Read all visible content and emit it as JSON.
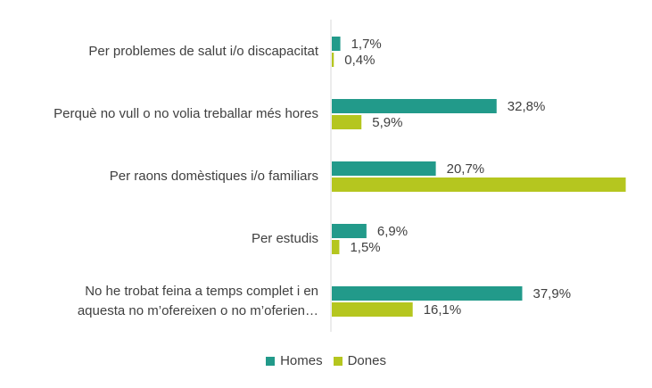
{
  "chart_data": {
    "type": "bar",
    "orientation": "horizontal",
    "categories": [
      [
        "Per problemes de salut i/o discapacitat"
      ],
      [
        "Perquè no vull o no volia treballar més hores"
      ],
      [
        "Per raons domèstiques i/o familiars"
      ],
      [
        "Per estudis"
      ],
      [
        "No he trobat feina a temps complet i en",
        "aquesta no m’ofereixen o no m’oferien…"
      ]
    ],
    "series": [
      {
        "name": "Homes",
        "color": "#229a8a",
        "values": [
          1.7,
          32.8,
          20.7,
          6.9,
          37.9
        ],
        "labels": [
          "1,7%",
          "32,8%",
          "20,7%",
          "6,9%",
          "37,9%"
        ]
      },
      {
        "name": "Dones",
        "color": "#b5c61f",
        "values": [
          0.4,
          5.9,
          58.5,
          1.5,
          16.1
        ],
        "labels": [
          "0,4%",
          "5,9%",
          "",
          "1,5%",
          "16,1%"
        ]
      }
    ],
    "xlim": [
      0,
      60
    ],
    "legend_position": "bottom",
    "grid": false
  }
}
